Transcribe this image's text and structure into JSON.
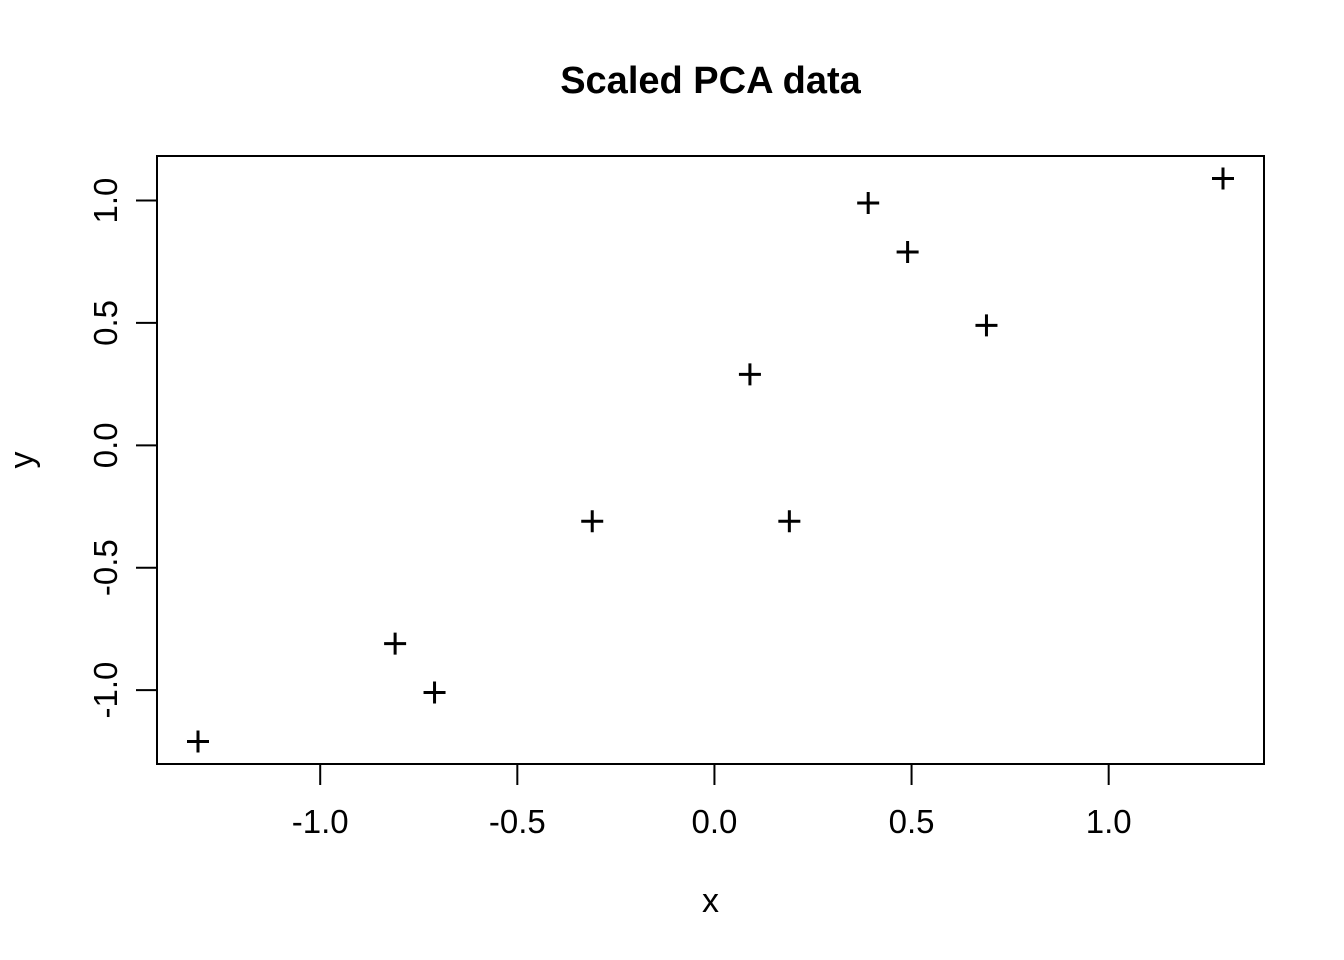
{
  "figure": {
    "background_color": "#FFFFFF",
    "foreground_color": "#000000"
  },
  "chart_data": {
    "type": "scatter",
    "title": "Scaled PCA data",
    "xlabel": "x",
    "ylabel": "y",
    "marker": "plus",
    "marker_color": "#000000",
    "grid": false,
    "legend": null,
    "x": [
      0.69,
      -1.31,
      0.39,
      0.09,
      1.29,
      0.49,
      0.19,
      -0.81,
      -0.31,
      -0.71
    ],
    "y": [
      0.49,
      -1.21,
      0.99,
      0.29,
      1.09,
      0.79,
      -0.31,
      -0.81,
      -0.31,
      -1.01
    ],
    "xlim": [
      -1.414,
      1.394
    ],
    "ylim": [
      -1.302,
      1.182
    ],
    "xticks": [
      -1.0,
      -0.5,
      0.0,
      0.5,
      1.0
    ],
    "yticks": [
      -1.0,
      -0.5,
      0.0,
      0.5,
      1.0
    ],
    "xtick_labels": [
      "-1.0",
      "-0.5",
      "0.0",
      "0.5",
      "1.0"
    ],
    "ytick_labels": [
      "-1.0",
      "-0.5",
      "0.0",
      "0.5",
      "1.0"
    ]
  }
}
